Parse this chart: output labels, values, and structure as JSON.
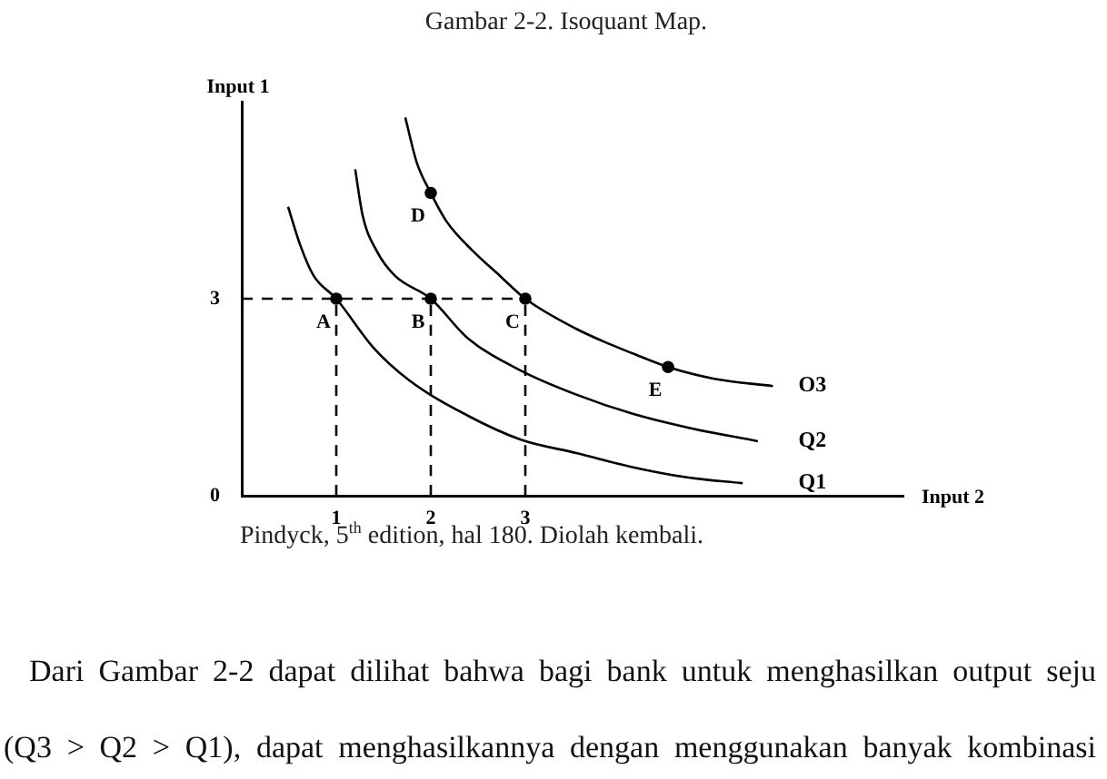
{
  "chart_data": {
    "type": "line",
    "title": "Gambar 2-2. Isoquant Map.",
    "xlabel": "Input 2",
    "ylabel": "Input 1",
    "xlim": [
      0,
      7
    ],
    "ylim": [
      0,
      6
    ],
    "xticks": [
      1,
      2,
      3
    ],
    "yticks": [
      0,
      3
    ],
    "legend": false,
    "series": [
      {
        "name": "Q1",
        "color": "#000000",
        "x": [
          0.49,
          0.62,
          0.76,
          1,
          1.39,
          1.77,
          2.39,
          2.96,
          3.54,
          4.12,
          4.71,
          5.3
        ],
        "values": [
          4.4,
          3.81,
          3.35,
          3,
          2.26,
          1.76,
          1.22,
          0.85,
          0.65,
          0.44,
          0.28,
          0.19
        ]
      },
      {
        "name": "Q2",
        "color": "#000000",
        "x": [
          1.2,
          1.28,
          1.43,
          1.62,
          2,
          2.39,
          2.96,
          3.54,
          4.13,
          4.71,
          5.46
        ],
        "values": [
          4.97,
          4.26,
          3.72,
          3.35,
          3,
          2.4,
          1.9,
          1.54,
          1.25,
          1.04,
          0.83
        ]
      },
      {
        "name": "O3",
        "color": "#000000",
        "x": [
          1.73,
          1.85,
          2,
          2.17,
          2.45,
          2.73,
          3,
          3.54,
          3.89,
          4.13,
          4.51,
          5,
          5.62
        ],
        "values": [
          5.76,
          5.08,
          4.61,
          4.17,
          3.72,
          3.35,
          3,
          2.54,
          2.31,
          2.17,
          1.96,
          1.78,
          1.67
        ]
      },
      {
        "line_style": "dashed",
        "color": "#000000",
        "x": [
          0,
          3
        ],
        "values": [
          3,
          3
        ]
      },
      {
        "line_style": "dashed",
        "color": "#000000",
        "x": [
          1,
          1
        ],
        "values": [
          0,
          3
        ]
      },
      {
        "line_style": "dashed",
        "color": "#000000",
        "x": [
          2,
          2
        ],
        "values": [
          0,
          3
        ]
      },
      {
        "line_style": "dashed",
        "color": "#000000",
        "x": [
          3,
          3
        ],
        "values": [
          0,
          3
        ]
      },
      {
        "type": "scatter",
        "marker": "circle",
        "color": "#000000",
        "x": [
          1,
          2,
          3,
          2,
          4.51
        ],
        "values": [
          3,
          3,
          3,
          4.61,
          1.96
        ]
      }
    ],
    "annotations": [
      "Pindyck, 5$^{th}$ edition, hal 180. Diolah kembali.",
      "Dari Gambar 2-2 dapat dilihat bahwa bagi bank untuk menghasilkan output seju",
      "(Q3 > Q2 > Q1), dapat menghasilkannya dengan menggunakan banyak kombinasi",
      {
        "text": "A",
        "x": 1,
        "y": 3
      },
      {
        "text": "B",
        "x": 2,
        "y": 3
      },
      {
        "text": "C",
        "x": 3,
        "y": 3
      },
      {
        "text": "D",
        "x": 2,
        "y": 4.61
      },
      {
        "text": "E",
        "x": 4.51,
        "y": 1.96
      }
    ]
  }
}
